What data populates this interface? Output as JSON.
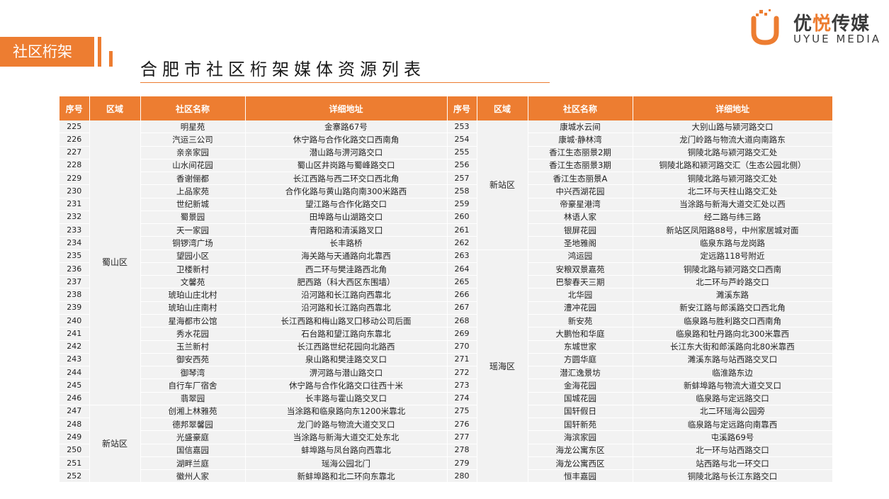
{
  "header": {
    "section_tag": "社区桁架",
    "page_title": "合肥市社区桁架媒体资源列表"
  },
  "logo": {
    "cn_part1": "优",
    "cn_highlight": "悦",
    "cn_part2": "传媒",
    "en": "UYUE MEDIA"
  },
  "colors": {
    "accent": "#ed7d31",
    "row_bg": "#f2f2f2"
  },
  "table": {
    "columns": [
      "序号",
      "区域",
      "社区名称",
      "详细地址",
      "序号",
      "区域",
      "社区名称",
      "详细地址"
    ],
    "left": {
      "groups": [
        {
          "region": "蜀山区",
          "rows": [
            [
              "225",
              "明星苑",
              "金寨路67号"
            ],
            [
              "226",
              "汽运三公司",
              "休宁路与合作化路交口西南角"
            ],
            [
              "227",
              "亲亲家园",
              "潜山路与淠河路交口"
            ],
            [
              "228",
              "山水间花园",
              "蜀山区井岗路与蜀峰路交口"
            ],
            [
              "229",
              "香谢俪都",
              "长江西路与西二环交口西北角"
            ],
            [
              "230",
              "上品家苑",
              "合作化路与黄山路向南300米路西"
            ],
            [
              "231",
              "世纪新城",
              "望江路与合作化路交口"
            ],
            [
              "232",
              "蜀景园",
              "田埠路与山湖路交口"
            ],
            [
              "233",
              "天一家园",
              "青阳路和清溪路叉囗"
            ],
            [
              "234",
              "铜锣湾广场",
              "长丰路桥"
            ],
            [
              "235",
              "望园小区",
              "海关路与天通路向北靠西"
            ],
            [
              "236",
              "卫楼新村",
              "西二环与樊洼路西北角"
            ],
            [
              "237",
              "文馨苑",
              "肥西路（科大西区东围墙）"
            ],
            [
              "238",
              "琥珀山庄北村",
              "沿河路和长江路向西靠北"
            ],
            [
              "239",
              "琥珀山庄南村",
              "沿河路和长江路向西靠北"
            ],
            [
              "240",
              "星海都市公馆",
              "长江西路和梅山路叉囗移动公司后面"
            ],
            [
              "241",
              "秀水花园",
              "石台路和望江路向东靠北"
            ],
            [
              "242",
              "玉兰新村",
              "长江西路世纪花园向北路西"
            ],
            [
              "243",
              "御安西苑",
              "泉山路和樊洼路交叉口"
            ],
            [
              "244",
              "御琴湾",
              "淠河路与潜山路交口"
            ],
            [
              "245",
              "自行车厂宿舍",
              "休宁路与合作化路交口往西十米"
            ],
            [
              "246",
              "翡翠园",
              "长丰路与霍山路交叉口"
            ]
          ]
        },
        {
          "region": "新站区",
          "rows": [
            [
              "247",
              "创湘上林雅苑",
              "当涂路和临泉路向东1200米靠北"
            ],
            [
              "248",
              "德邦翠馨园",
              "龙门岭路与物流大道交叉口"
            ],
            [
              "249",
              "光盛豪庭",
              "当涂路与新海大道交汇处东北"
            ],
            [
              "250",
              "国信嘉园",
              "蚌埠路与凤台路向西靠北"
            ],
            [
              "251",
              "湖畔兰庭",
              "瑶海公园北门"
            ],
            [
              "252",
              "徽州人家",
              "新蚌埠路和北二环向东靠北"
            ]
          ]
        }
      ]
    },
    "right": {
      "groups": [
        {
          "region": "新站区",
          "rows": [
            [
              "253",
              "康城水云间",
              "大别山路与颍河路交口"
            ],
            [
              "254",
              "康城·静林湾",
              "龙门岭路与物流大道向南路东"
            ],
            [
              "255",
              "香江生态丽景2期",
              "铜陵北路与颍河路交汇处"
            ],
            [
              "256",
              "香江生态丽景3期",
              "铜陵北路和颍河路交汇（生态公园北侧）"
            ],
            [
              "257",
              "香江生态丽景A",
              "铜陵北路与颍河路交汇处"
            ],
            [
              "258",
              "中兴西湖花园",
              "北二环与天柱山路交汇处"
            ],
            [
              "259",
              "帝豪星港湾",
              "当涂路与新海大道交汇处以西"
            ],
            [
              "260",
              "林语人家",
              "经二路与纬三路"
            ],
            [
              "261",
              "银屏花园",
              "新站区凤阳路88号，中州家居城对面"
            ],
            [
              "262",
              "圣地雅阁",
              "临泉东路与龙岗路"
            ]
          ]
        },
        {
          "region": "瑶海区",
          "rows": [
            [
              "263",
              "鸿运园",
              "定远路118号附近"
            ],
            [
              "264",
              "安粮双景嘉苑",
              "铜陵北路与颍河路交口西南"
            ],
            [
              "265",
              "巴黎春天三期",
              "北二环与芦岭路交口"
            ],
            [
              "266",
              "北华园",
              "濉溪东路"
            ],
            [
              "267",
              "澧冲花园",
              "新安江路与郎溪路交口西北角"
            ],
            [
              "268",
              "新安苑",
              "临泉路与胜利路交口西南角"
            ],
            [
              "269",
              "大鹏怡和华庭",
              "临泉路和牡丹路向北300米靠西"
            ],
            [
              "270",
              "东城世家",
              "长江东大街和郎溪路向北80米靠西"
            ],
            [
              "271",
              "方圆华庭",
              "濉溪东路与站西路交叉口"
            ],
            [
              "272",
              "潜汇逸景坊",
              "临淮路东边"
            ],
            [
              "273",
              "金海花园",
              "新蚌埠路与物流大道交叉口"
            ],
            [
              "274",
              "国城花园",
              "临泉路与定远路交口"
            ],
            [
              "275",
              "国轩假日",
              "北二环瑶海公园旁"
            ],
            [
              "276",
              "国轩新苑",
              "临泉路与定远路向南靠西"
            ],
            [
              "277",
              "海滨家园",
              "屯溪路69号"
            ],
            [
              "278",
              "海龙公寓东区",
              "北一环与站西路交口"
            ],
            [
              "279",
              "海龙公寓西区",
              "站西路与北一环交口"
            ],
            [
              "280",
              "恒丰嘉园",
              "铜陵北路与长江东路交口"
            ]
          ]
        }
      ]
    }
  }
}
